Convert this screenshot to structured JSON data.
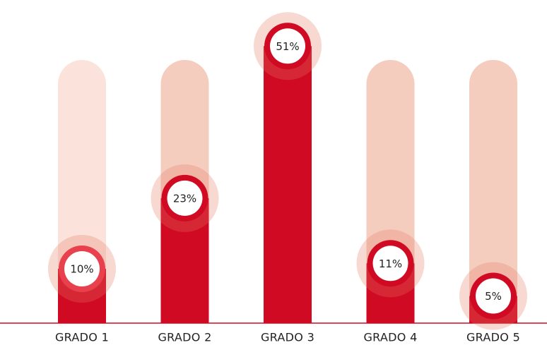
{
  "chart_data": {
    "type": "bar",
    "categories": [
      "GRADO 1",
      "GRADO 2",
      "GRADO 3",
      "GRADO 4",
      "GRADO 5"
    ],
    "values": [
      10,
      23,
      51,
      11,
      5
    ],
    "value_labels": [
      "10%",
      "23%",
      "51%",
      "11%",
      "5%"
    ],
    "color": "#d10a24"
  }
}
